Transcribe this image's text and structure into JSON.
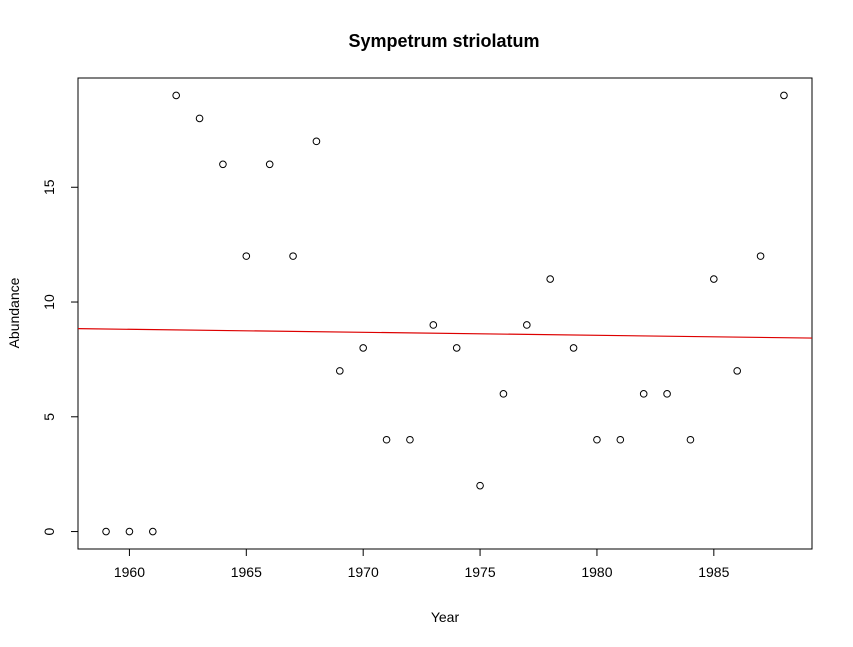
{
  "chart_data": {
    "type": "scatter",
    "title": "Sympetrum striolatum",
    "xlabel": "Year",
    "ylabel": "Abundance",
    "xlim": [
      1957.8,
      1989.2
    ],
    "ylim": [
      -0.76,
      19.76
    ],
    "xticks": [
      1960,
      1965,
      1970,
      1975,
      1980,
      1985
    ],
    "yticks": [
      0,
      5,
      10,
      15
    ],
    "grid": false,
    "series": [
      {
        "x": [
          1959,
          1960,
          1961,
          1962,
          1963,
          1964,
          1965,
          1966,
          1967,
          1968,
          1969,
          1970,
          1971,
          1972,
          1973,
          1974,
          1975,
          1976,
          1977,
          1978,
          1979,
          1980,
          1981,
          1982,
          1983,
          1984,
          1985,
          1986,
          1987,
          1988
        ],
        "y": [
          0,
          0,
          0,
          19,
          18,
          16,
          12,
          16,
          12,
          17,
          7,
          8,
          4,
          4,
          9,
          8,
          2,
          6,
          9,
          11,
          8,
          4,
          4,
          6,
          6,
          4,
          11,
          7,
          12,
          19
        ],
        "marker": "open-circle",
        "color": "#000000"
      }
    ],
    "trend_line": {
      "x": [
        1957.8,
        1989.2
      ],
      "y": [
        8.84,
        8.43
      ],
      "color": "#dd0000"
    }
  }
}
